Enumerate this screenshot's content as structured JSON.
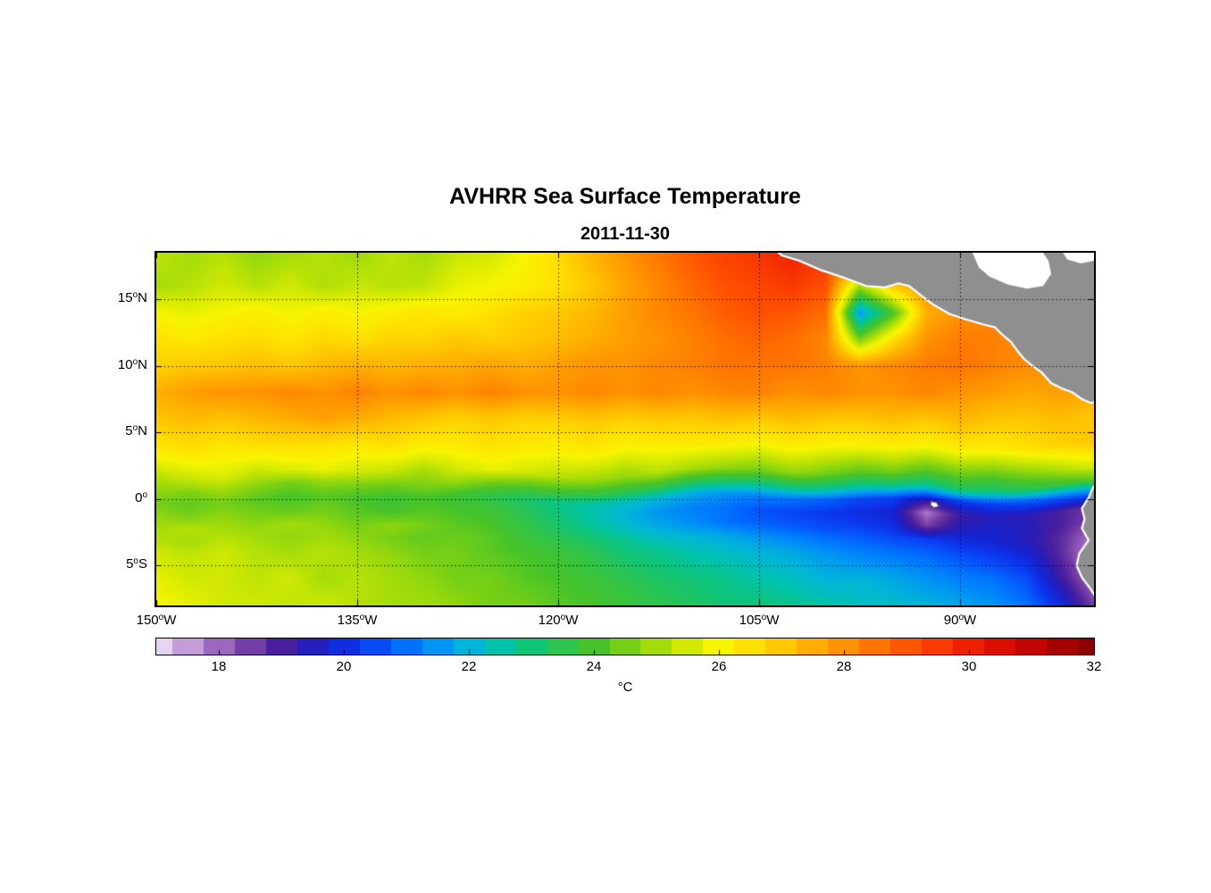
{
  "chart_data": {
    "type": "heatmap",
    "title": "AVHRR Sea Surface Temperature",
    "subtitle": "2011-11-30",
    "x_axis": {
      "range": [
        -150,
        -80
      ],
      "ticks": [
        {
          "value": -150,
          "label": "150°W"
        },
        {
          "value": -135,
          "label": "135°W"
        },
        {
          "value": -120,
          "label": "120°W"
        },
        {
          "value": -105,
          "label": "105°W"
        },
        {
          "value": -90,
          "label": "90°W"
        }
      ]
    },
    "y_axis": {
      "range": [
        -8,
        18.5
      ],
      "ticks": [
        {
          "value": 15,
          "label": "15°N"
        },
        {
          "value": 10,
          "label": "10°N"
        },
        {
          "value": 5,
          "label": "5°N"
        },
        {
          "value": 0,
          "label": "0°"
        },
        {
          "value": -5,
          "label": "5°S"
        }
      ]
    },
    "grid": "dotted",
    "colorbar": {
      "orientation": "horizontal",
      "range": [
        17,
        32
      ],
      "ticks": [
        18,
        20,
        22,
        24,
        26,
        28,
        30,
        32
      ],
      "unit": "°C"
    },
    "colormap": [
      [
        17.0,
        "#e4d4ef"
      ],
      [
        17.4,
        "#cba8de"
      ],
      [
        17.8,
        "#ac7cca"
      ],
      [
        18.2,
        "#8c55b5"
      ],
      [
        18.6,
        "#6c35a3"
      ],
      [
        19.0,
        "#4a1f9e"
      ],
      [
        19.4,
        "#2a1cb4"
      ],
      [
        19.8,
        "#1524d2"
      ],
      [
        20.2,
        "#0b36ee"
      ],
      [
        20.6,
        "#0652fa"
      ],
      [
        21.0,
        "#0072ff"
      ],
      [
        21.5,
        "#0094f4"
      ],
      [
        22.0,
        "#00b4da"
      ],
      [
        22.5,
        "#00c3aa"
      ],
      [
        23.0,
        "#10c476"
      ],
      [
        23.5,
        "#2fc44d"
      ],
      [
        24.0,
        "#46c32a"
      ],
      [
        24.5,
        "#74cf16"
      ],
      [
        25.0,
        "#a4dc0a"
      ],
      [
        25.5,
        "#d1e903"
      ],
      [
        26.0,
        "#f8f500"
      ],
      [
        26.5,
        "#ffe100"
      ],
      [
        27.0,
        "#ffc800"
      ],
      [
        27.5,
        "#ffae00"
      ],
      [
        28.0,
        "#ff9300"
      ],
      [
        28.5,
        "#ff7500"
      ],
      [
        29.0,
        "#ff5600"
      ],
      [
        29.5,
        "#fa3a00"
      ],
      [
        30.0,
        "#ef2000"
      ],
      [
        30.5,
        "#dc0e00"
      ],
      [
        31.0,
        "#c30300"
      ],
      [
        31.5,
        "#a70000"
      ],
      [
        32.0,
        "#8c0000"
      ]
    ],
    "sst_grid": {
      "lons": [
        -150,
        -147.5,
        -145,
        -142.5,
        -140,
        -137.5,
        -135,
        -132.5,
        -130,
        -127.5,
        -125,
        -122.5,
        -120,
        -117.5,
        -115,
        -112.5,
        -110,
        -107.5,
        -105,
        -102.5,
        -100,
        -97.5,
        -95,
        -92.5,
        -90,
        -87.5,
        -85,
        -82.5,
        -80
      ],
      "lats": [
        18.5,
        16,
        14,
        12,
        10,
        8,
        6,
        4,
        2,
        1,
        0,
        -1,
        -2,
        -3,
        -4,
        -6,
        -8
      ],
      "values": [
        [
          25.3,
          25.0,
          25.2,
          24.8,
          25.0,
          25.2,
          24.9,
          25.3,
          25.0,
          25.4,
          25.5,
          26.0,
          26.6,
          27.4,
          28.0,
          28.5,
          29.0,
          29.4,
          29.6,
          30.0,
          29.6,
          29.2,
          29.0,
          28.6,
          28.2,
          28.0,
          28.0,
          27.8,
          27.5
        ],
        [
          25.0,
          25.2,
          25.5,
          25.2,
          25.5,
          25.1,
          25.4,
          25.2,
          25.3,
          25.8,
          26.0,
          26.2,
          26.5,
          27.0,
          27.7,
          28.2,
          28.7,
          29.1,
          29.3,
          29.5,
          29.1,
          25.0,
          27.0,
          28.0,
          28.0,
          28.0,
          28.0,
          27.8,
          27.6
        ],
        [
          26.0,
          25.8,
          26.0,
          26.2,
          25.9,
          26.2,
          26.0,
          26.2,
          26.4,
          26.2,
          26.5,
          26.8,
          27.0,
          27.3,
          27.8,
          28.2,
          28.5,
          28.9,
          29.1,
          29.0,
          28.6,
          21.5,
          24.0,
          27.5,
          28.0,
          28.2,
          28.0,
          27.8,
          27.6
        ],
        [
          26.5,
          26.3,
          26.5,
          26.6,
          26.4,
          26.7,
          26.5,
          26.8,
          26.7,
          27.0,
          26.8,
          27.0,
          27.2,
          27.5,
          27.8,
          28.0,
          28.3,
          28.6,
          28.8,
          28.6,
          28.2,
          24.5,
          26.5,
          28.0,
          28.4,
          28.3,
          28.1,
          28.0,
          27.8
        ],
        [
          26.8,
          27.0,
          27.0,
          27.2,
          27.0,
          27.3,
          27.5,
          27.3,
          27.5,
          27.5,
          27.7,
          27.5,
          27.8,
          28.0,
          28.0,
          28.2,
          28.3,
          28.5,
          28.5,
          28.5,
          28.3,
          28.0,
          28.2,
          28.4,
          28.5,
          28.3,
          28.1,
          28.0,
          27.8
        ],
        [
          27.5,
          27.8,
          28.0,
          28.0,
          28.2,
          28.0,
          28.3,
          28.0,
          28.2,
          28.0,
          28.3,
          28.0,
          28.0,
          28.2,
          28.0,
          28.2,
          28.0,
          28.2,
          28.3,
          28.0,
          28.2,
          28.0,
          28.0,
          28.2,
          28.0,
          27.8,
          27.6,
          27.8,
          27.5
        ],
        [
          27.0,
          27.2,
          27.0,
          27.3,
          27.5,
          27.8,
          27.5,
          27.2,
          27.0,
          26.8,
          27.0,
          26.8,
          26.8,
          27.0,
          26.8,
          27.0,
          27.0,
          27.2,
          27.0,
          27.2,
          27.0,
          27.0,
          27.2,
          27.0,
          27.3,
          27.0,
          27.0,
          27.2,
          27.0
        ],
        [
          26.3,
          26.5,
          26.3,
          26.5,
          26.6,
          26.5,
          26.3,
          26.5,
          26.2,
          26.3,
          26.5,
          26.3,
          26.2,
          26.3,
          26.0,
          26.2,
          26.3,
          26.2,
          26.0,
          26.2,
          26.0,
          26.0,
          26.2,
          26.0,
          26.3,
          26.2,
          26.5,
          26.8,
          27.0
        ],
        [
          25.2,
          25.4,
          25.6,
          25.3,
          25.6,
          25.8,
          25.5,
          25.3,
          25.0,
          25.5,
          25.8,
          25.5,
          25.2,
          25.0,
          24.8,
          25.2,
          25.0,
          24.8,
          24.5,
          24.8,
          24.5,
          24.2,
          24.5,
          24.0,
          24.3,
          24.1,
          24.5,
          25.0,
          25.5
        ],
        [
          24.8,
          24.6,
          24.9,
          24.7,
          24.5,
          24.8,
          24.6,
          24.4,
          24.6,
          24.8,
          24.5,
          24.2,
          24.0,
          23.8,
          23.6,
          23.8,
          23.5,
          23.3,
          23.0,
          23.2,
          23.0,
          22.8,
          23.0,
          22.6,
          23.2,
          23.0,
          23.4,
          23.8,
          24.2
        ],
        [
          24.5,
          24.3,
          24.5,
          24.2,
          24.0,
          24.2,
          24.0,
          23.8,
          24.0,
          23.8,
          23.5,
          23.2,
          22.8,
          22.5,
          22.2,
          22.0,
          21.8,
          21.5,
          21.2,
          21.0,
          20.8,
          20.5,
          20.4,
          19.5,
          20.2,
          20.4,
          20.6,
          20.8,
          21.0
        ],
        [
          24.8,
          24.6,
          24.8,
          24.5,
          24.3,
          24.5,
          24.2,
          24.0,
          24.2,
          24.0,
          23.8,
          23.4,
          23.0,
          22.5,
          22.0,
          21.5,
          21.2,
          21.0,
          20.6,
          20.4,
          20.2,
          20.0,
          19.8,
          17.8,
          19.2,
          19.5,
          19.4,
          19.0,
          18.5
        ],
        [
          25.0,
          25.2,
          25.0,
          24.8,
          25.0,
          24.8,
          24.5,
          24.8,
          24.5,
          24.2,
          24.0,
          23.6,
          23.2,
          22.8,
          22.3,
          21.8,
          21.4,
          21.0,
          20.8,
          20.7,
          20.5,
          20.3,
          20.0,
          18.5,
          19.5,
          19.7,
          19.5,
          19.0,
          18.3
        ],
        [
          25.2,
          25.0,
          25.3,
          25.0,
          24.8,
          25.0,
          24.8,
          24.5,
          24.3,
          24.4,
          24.2,
          23.8,
          23.5,
          23.2,
          22.8,
          22.3,
          22.0,
          21.8,
          21.5,
          21.3,
          21.0,
          20.8,
          20.5,
          20.3,
          20.0,
          19.8,
          19.5,
          18.8,
          17.8
        ],
        [
          25.5,
          25.3,
          25.5,
          25.2,
          25.0,
          25.2,
          25.0,
          24.8,
          24.5,
          24.5,
          24.2,
          24.0,
          23.8,
          23.5,
          23.0,
          22.8,
          22.4,
          22.2,
          22.0,
          21.8,
          21.5,
          21.2,
          21.0,
          20.8,
          20.5,
          20.2,
          19.8,
          18.8,
          17.5
        ],
        [
          25.8,
          25.5,
          25.5,
          25.3,
          25.5,
          25.0,
          25.2,
          25.0,
          24.8,
          24.5,
          24.5,
          24.2,
          24.0,
          23.8,
          23.5,
          23.2,
          23.0,
          22.8,
          22.5,
          22.3,
          22.0,
          22.0,
          21.8,
          21.5,
          21.2,
          21.0,
          20.5,
          19.2,
          17.8
        ],
        [
          26.0,
          25.8,
          25.5,
          25.5,
          25.3,
          25.5,
          25.2,
          25.0,
          25.0,
          24.8,
          24.5,
          24.5,
          24.2,
          24.0,
          23.8,
          23.5,
          23.3,
          23.0,
          23.0,
          22.8,
          22.5,
          22.3,
          22.2,
          22.0,
          21.8,
          21.5,
          21.0,
          20.0,
          18.5
        ]
      ]
    },
    "land": {
      "fill": "#8f8f8f",
      "coast_stroke": "#ffffff",
      "polygons": {
        "central_america": [
          [
            -104.0,
            18.9
          ],
          [
            -103.3,
            18.3
          ],
          [
            -102.0,
            17.9
          ],
          [
            -100.4,
            17.2
          ],
          [
            -98.6,
            16.6
          ],
          [
            -97.0,
            16.0
          ],
          [
            -95.6,
            15.9
          ],
          [
            -94.6,
            16.2
          ],
          [
            -93.8,
            16.0
          ],
          [
            -92.8,
            15.2
          ],
          [
            -92.0,
            14.6
          ],
          [
            -90.8,
            13.9
          ],
          [
            -89.6,
            13.5
          ],
          [
            -88.2,
            13.1
          ],
          [
            -87.4,
            12.9
          ],
          [
            -86.8,
            12.3
          ],
          [
            -86.2,
            11.8
          ],
          [
            -85.7,
            11.1
          ],
          [
            -85.2,
            10.5
          ],
          [
            -84.6,
            10.0
          ],
          [
            -83.9,
            9.5
          ],
          [
            -83.2,
            8.7
          ],
          [
            -82.4,
            8.3
          ],
          [
            -81.6,
            8.0
          ],
          [
            -80.9,
            7.5
          ],
          [
            -80.2,
            7.2
          ],
          [
            -79.6,
            7.4
          ],
          [
            -79.3,
            8.0
          ],
          [
            -79.3,
            19.0
          ]
        ],
        "south_america": [
          [
            -79.7,
            1.3
          ],
          [
            -80.1,
            0.8
          ],
          [
            -80.4,
            0.1
          ],
          [
            -80.9,
            -0.7
          ],
          [
            -80.7,
            -1.5
          ],
          [
            -80.9,
            -2.2
          ],
          [
            -80.4,
            -3.1
          ],
          [
            -81.1,
            -4.1
          ],
          [
            -81.3,
            -5.0
          ],
          [
            -80.9,
            -5.9
          ],
          [
            -80.3,
            -6.7
          ],
          [
            -79.8,
            -7.5
          ],
          [
            -79.4,
            -8.4
          ],
          [
            -79.4,
            1.5
          ]
        ]
      },
      "no_data_white": [
        [
          [
            -89.2,
            18.8
          ],
          [
            -88.6,
            17.4
          ],
          [
            -87.8,
            16.7
          ],
          [
            -86.4,
            16.1
          ],
          [
            -85.0,
            15.8
          ],
          [
            -83.8,
            16.0
          ],
          [
            -83.2,
            16.9
          ],
          [
            -83.4,
            17.9
          ],
          [
            -84.0,
            18.8
          ]
        ],
        [
          [
            -82.5,
            18.8
          ],
          [
            -82.0,
            18.0
          ],
          [
            -81.0,
            17.7
          ],
          [
            -80.0,
            17.9
          ],
          [
            -79.4,
            18.3
          ],
          [
            -79.4,
            18.8
          ]
        ]
      ],
      "galapagos": [
        [
          -92.15,
          -0.2
        ],
        [
          -91.75,
          -0.28
        ],
        [
          -91.6,
          -0.55
        ],
        [
          -91.95,
          -0.65
        ],
        [
          -92.2,
          -0.45
        ]
      ]
    }
  }
}
